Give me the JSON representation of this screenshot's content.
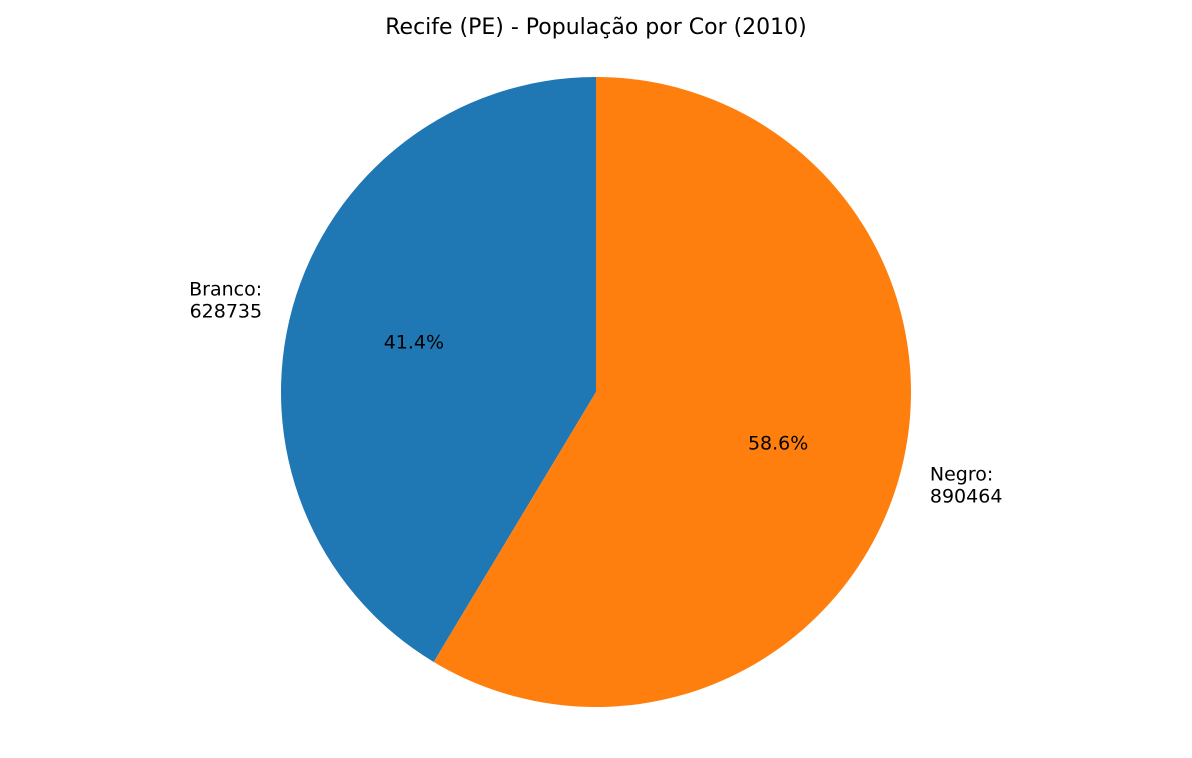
{
  "chart_data": {
    "type": "pie",
    "title": "Recife (PE) - População por Cor (2010)",
    "slices": [
      {
        "label": "Branco",
        "value": 628735,
        "label_text": "Branco:\n628735",
        "percent_text": "41.4%",
        "color": "#1f77b4"
      },
      {
        "label": "Negro",
        "value": 890464,
        "label_text": "Negro:\n890464",
        "percent_text": "58.6%",
        "color": "#ff7f0e"
      }
    ],
    "start_angle": "top",
    "direction": "counterclockwise",
    "legend": "none"
  }
}
